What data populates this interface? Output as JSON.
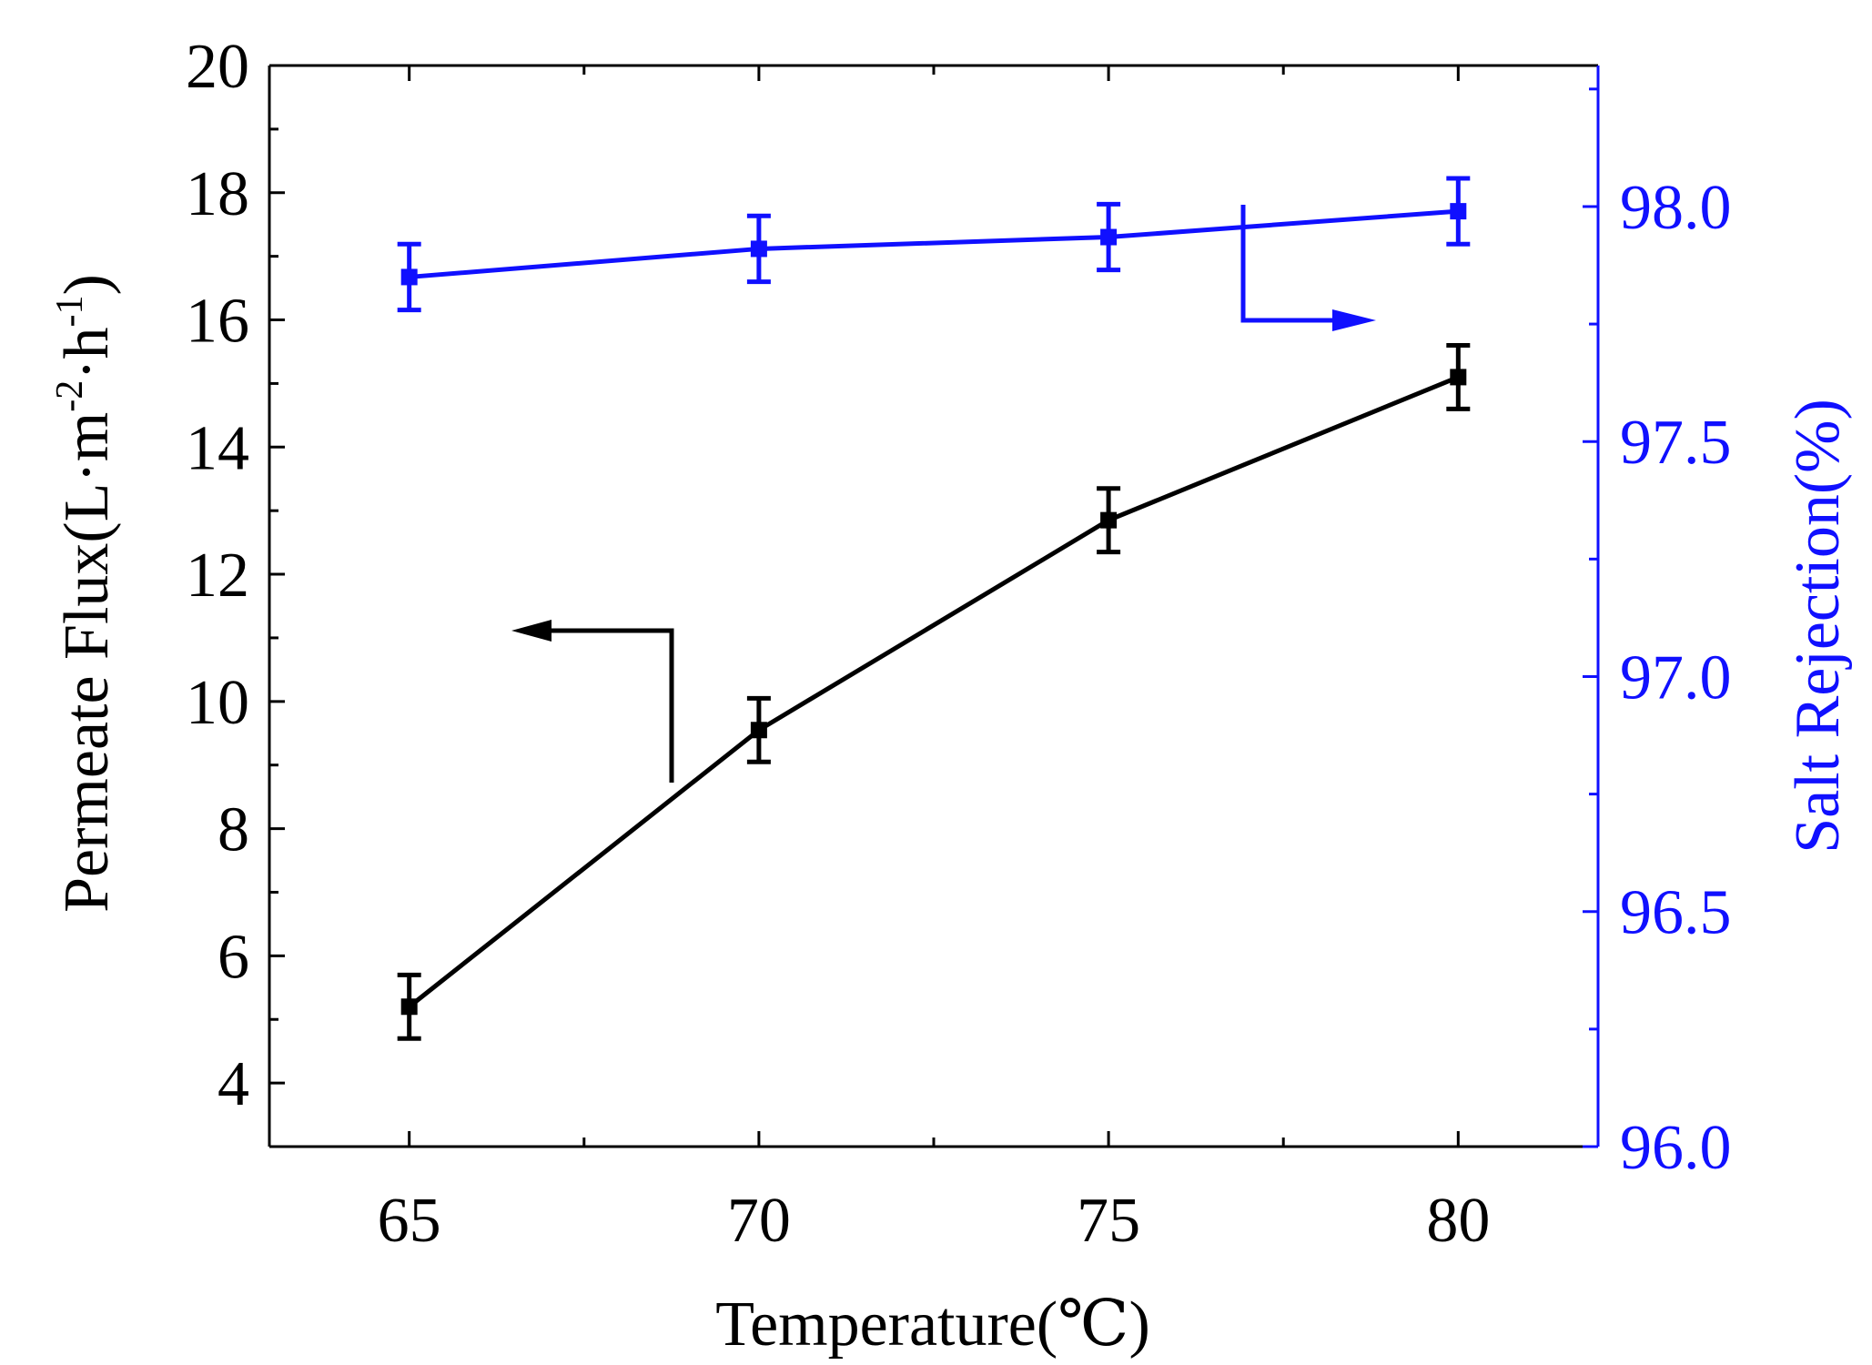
{
  "chart_data": {
    "type": "line",
    "xlabel": "Temperature(℃)",
    "x": [
      65,
      70,
      75,
      80
    ],
    "xlim": [
      63,
      82
    ],
    "xticks": [
      65,
      70,
      75,
      80
    ],
    "y_left": {
      "label": "Permeate Flux(L·m⁻²·h⁻¹)",
      "label_main": "Permeate Flux(L·m",
      "label_sup1": "-2",
      "label_mid": "·h",
      "label_sup2": "-1",
      "label_end": ")",
      "lim": [
        3,
        20
      ],
      "ticks": [
        4,
        6,
        8,
        10,
        12,
        14,
        16,
        18,
        20
      ],
      "color": "#000000"
    },
    "y_right": {
      "label": "Salt Rejection(%)",
      "lim": [
        96.0,
        98.3
      ],
      "ticks": [
        96.0,
        96.5,
        97.0,
        97.5,
        98.0
      ],
      "tick_labels": [
        "96.0",
        "96.5",
        "97.0",
        "97.5",
        "98.0"
      ],
      "color": "#1010ff"
    },
    "series": [
      {
        "name": "Permeate Flux",
        "axis": "left",
        "color": "#000000",
        "values": [
          5.2,
          9.55,
          12.85,
          15.1
        ],
        "errors": [
          0.5,
          0.5,
          0.5,
          0.5
        ]
      },
      {
        "name": "Salt Rejection",
        "axis": "right",
        "color": "#1010ff",
        "values": [
          97.85,
          97.91,
          97.935,
          97.99
        ],
        "errors": [
          0.07,
          0.07,
          0.07,
          0.07
        ]
      }
    ],
    "annotations": [
      {
        "type": "arrow",
        "points_to": "left axis",
        "series": "Permeate Flux"
      },
      {
        "type": "arrow",
        "points_to": "right axis",
        "series": "Salt Rejection"
      }
    ]
  }
}
